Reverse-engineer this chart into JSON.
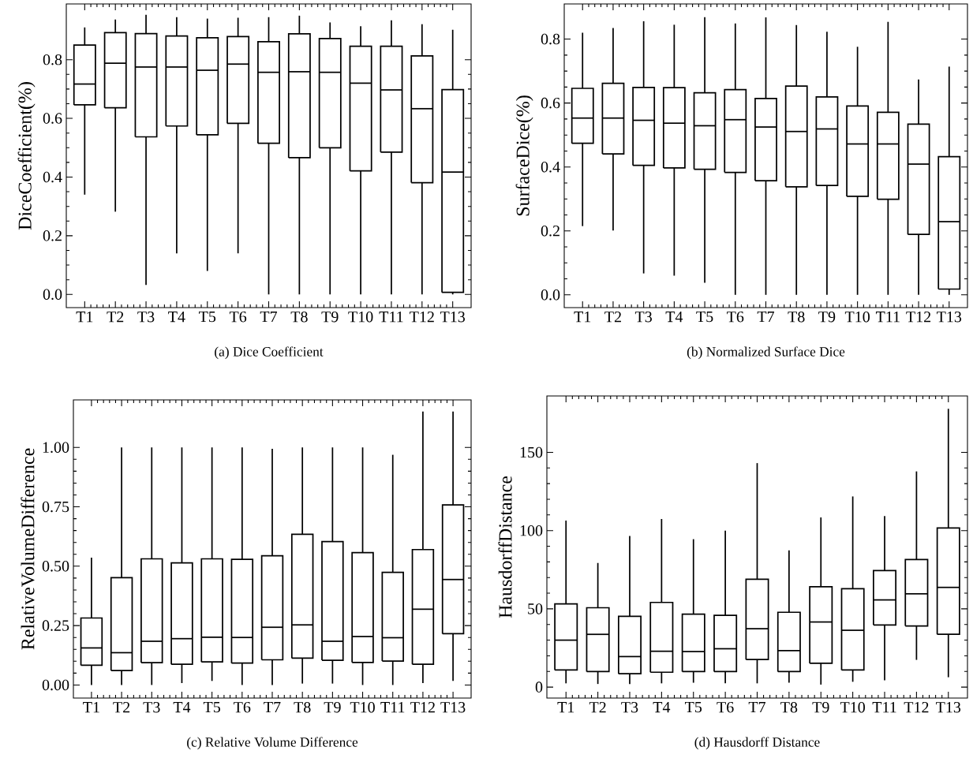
{
  "chart_data": [
    {
      "type": "box",
      "title": "(a) Dice Coefficient",
      "ylabel": "DiceCoefficient(%)",
      "categories": [
        "T1",
        "T2",
        "T3",
        "T4",
        "T5",
        "T6",
        "T7",
        "T8",
        "T9",
        "T10",
        "T11",
        "T12",
        "T13"
      ],
      "ylim": [
        -0.045,
        0.99
      ],
      "yticks": [
        {
          "value": 0,
          "label": "0.0"
        },
        {
          "value": 0.2,
          "label": "0.2"
        },
        {
          "value": 0.4,
          "label": "0.4"
        },
        {
          "value": 0.6,
          "label": "0.6"
        },
        {
          "value": 0.8,
          "label": "0.8"
        }
      ],
      "boxes": [
        {
          "low": 0.34,
          "q1": 0.646,
          "median": 0.717,
          "q3": 0.85,
          "high": 0.91
        },
        {
          "low": 0.282,
          "q1": 0.636,
          "median": 0.788,
          "q3": 0.892,
          "high": 0.937
        },
        {
          "low": 0.032,
          "q1": 0.537,
          "median": 0.775,
          "q3": 0.889,
          "high": 0.953
        },
        {
          "low": 0.14,
          "q1": 0.574,
          "median": 0.775,
          "q3": 0.881,
          "high": 0.945
        },
        {
          "low": 0.08,
          "q1": 0.544,
          "median": 0.764,
          "q3": 0.875,
          "high": 0.94
        },
        {
          "low": 0.14,
          "q1": 0.583,
          "median": 0.785,
          "q3": 0.879,
          "high": 0.943
        },
        {
          "low": 0,
          "q1": 0.515,
          "median": 0.757,
          "q3": 0.861,
          "high": 0.945
        },
        {
          "low": 0,
          "q1": 0.466,
          "median": 0.759,
          "q3": 0.888,
          "high": 0.95
        },
        {
          "low": 0,
          "q1": 0.5,
          "median": 0.757,
          "q3": 0.872,
          "high": 0.927
        },
        {
          "low": 0,
          "q1": 0.421,
          "median": 0.72,
          "q3": 0.846,
          "high": 0.914
        },
        {
          "low": 0,
          "q1": 0.485,
          "median": 0.697,
          "q3": 0.846,
          "high": 0.934
        },
        {
          "low": 0,
          "q1": 0.381,
          "median": 0.633,
          "q3": 0.813,
          "high": 0.921
        },
        {
          "low": 0,
          "q1": 0.007,
          "median": 0.417,
          "q3": 0.698,
          "high": 0.902
        }
      ]
    },
    {
      "type": "box",
      "title": "(b) Normalized Surface Dice",
      "ylabel": "SurfaceDice(%)",
      "categories": [
        "T1",
        "T2",
        "T3",
        "T4",
        "T5",
        "T6",
        "T7",
        "T8",
        "T9",
        "T10",
        "T11",
        "T12",
        "T13"
      ],
      "ylim": [
        -0.04,
        0.91
      ],
      "yticks": [
        {
          "value": 0,
          "label": "0.0"
        },
        {
          "value": 0.2,
          "label": "0.2"
        },
        {
          "value": 0.4,
          "label": "0.4"
        },
        {
          "value": 0.6,
          "label": "0.6"
        },
        {
          "value": 0.8,
          "label": "0.8"
        }
      ],
      "boxes": [
        {
          "low": 0.215,
          "q1": 0.474,
          "median": 0.553,
          "q3": 0.646,
          "high": 0.82
        },
        {
          "low": 0.201,
          "q1": 0.441,
          "median": 0.553,
          "q3": 0.662,
          "high": 0.835
        },
        {
          "low": 0.067,
          "q1": 0.405,
          "median": 0.546,
          "q3": 0.649,
          "high": 0.856
        },
        {
          "low": 0.06,
          "q1": 0.397,
          "median": 0.537,
          "q3": 0.648,
          "high": 0.845
        },
        {
          "low": 0.038,
          "q1": 0.393,
          "median": 0.529,
          "q3": 0.632,
          "high": 0.869
        },
        {
          "low": 0,
          "q1": 0.383,
          "median": 0.548,
          "q3": 0.642,
          "high": 0.849
        },
        {
          "low": 0,
          "q1": 0.357,
          "median": 0.525,
          "q3": 0.614,
          "high": 0.868
        },
        {
          "low": 0,
          "q1": 0.338,
          "median": 0.511,
          "q3": 0.653,
          "high": 0.844
        },
        {
          "low": 0,
          "q1": 0.342,
          "median": 0.519,
          "q3": 0.619,
          "high": 0.823
        },
        {
          "low": 0,
          "q1": 0.308,
          "median": 0.472,
          "q3": 0.591,
          "high": 0.776
        },
        {
          "low": 0,
          "q1": 0.299,
          "median": 0.472,
          "q3": 0.571,
          "high": 0.854
        },
        {
          "low": 0,
          "q1": 0.189,
          "median": 0.409,
          "q3": 0.534,
          "high": 0.674
        },
        {
          "low": 0,
          "q1": 0.018,
          "median": 0.229,
          "q3": 0.432,
          "high": 0.714
        }
      ]
    },
    {
      "type": "box",
      "title": "(c) Relative Volume Difference",
      "ylabel": "RelativeVolumeDifference",
      "categories": [
        "T1",
        "T2",
        "T3",
        "T4",
        "T5",
        "T6",
        "T7",
        "T8",
        "T9",
        "T10",
        "T11",
        "T12",
        "T13"
      ],
      "ylim": [
        -0.055,
        1.2
      ],
      "yticks": [
        {
          "value": 0,
          "label": "0.00"
        },
        {
          "value": 0.25,
          "label": "0.25"
        },
        {
          "value": 0.5,
          "label": "0.50"
        },
        {
          "value": 0.75,
          "label": "0.75"
        },
        {
          "value": 1,
          "label": "1.00"
        }
      ],
      "boxes": [
        {
          "low": 0,
          "q1": 0.083,
          "median": 0.156,
          "q3": 0.282,
          "high": 0.536
        },
        {
          "low": 0,
          "q1": 0.061,
          "median": 0.136,
          "q3": 0.452,
          "high": 1.0
        },
        {
          "low": 0,
          "q1": 0.094,
          "median": 0.184,
          "q3": 0.531,
          "high": 1.0
        },
        {
          "low": 0.008,
          "q1": 0.087,
          "median": 0.195,
          "q3": 0.514,
          "high": 1.0
        },
        {
          "low": 0.017,
          "q1": 0.097,
          "median": 0.201,
          "q3": 0.531,
          "high": 1.0
        },
        {
          "low": 0,
          "q1": 0.092,
          "median": 0.2,
          "q3": 0.529,
          "high": 1.0
        },
        {
          "low": 0,
          "q1": 0.106,
          "median": 0.243,
          "q3": 0.544,
          "high": 0.994
        },
        {
          "low": 0.006,
          "q1": 0.113,
          "median": 0.253,
          "q3": 0.634,
          "high": 1.0
        },
        {
          "low": 0.006,
          "q1": 0.104,
          "median": 0.184,
          "q3": 0.604,
          "high": 1.0
        },
        {
          "low": 0,
          "q1": 0.095,
          "median": 0.204,
          "q3": 0.557,
          "high": 1.0
        },
        {
          "low": 0,
          "q1": 0.101,
          "median": 0.199,
          "q3": 0.474,
          "high": 0.969
        },
        {
          "low": 0.008,
          "q1": 0.087,
          "median": 0.319,
          "q3": 0.57,
          "high": 1.151
        },
        {
          "low": 0.017,
          "q1": 0.216,
          "median": 0.444,
          "q3": 0.758,
          "high": 1.151
        }
      ]
    },
    {
      "type": "box",
      "title": "(d) Hausdorff Distance",
      "ylabel": "HausdorffDistance",
      "categories": [
        "T1",
        "T2",
        "T3",
        "T4",
        "T5",
        "T6",
        "T7",
        "T8",
        "T9",
        "T10",
        "T11",
        "T12",
        "T13"
      ],
      "ylim": [
        -7,
        186
      ],
      "yticks": [
        0,
        50,
        100,
        150
      ],
      "boxes": [
        {
          "low": 2.4,
          "q1": 10.9,
          "median": 30,
          "q3": 53.1,
          "high": 106.4
        },
        {
          "low": 2,
          "q1": 9.9,
          "median": 33.7,
          "q3": 50.7,
          "high": 79.3
        },
        {
          "low": 2,
          "q1": 8.5,
          "median": 19.5,
          "q3": 45.2,
          "high": 96.5
        },
        {
          "low": 2.4,
          "q1": 9.5,
          "median": 22.9,
          "q3": 54.1,
          "high": 107.4
        },
        {
          "low": 2.8,
          "q1": 9.9,
          "median": 22.7,
          "q3": 46.6,
          "high": 94.5
        },
        {
          "low": 2.4,
          "q1": 9.9,
          "median": 24.5,
          "q3": 45.8,
          "high": 100
        },
        {
          "low": 2.4,
          "q1": 17.6,
          "median": 37.3,
          "q3": 68.9,
          "high": 143.1
        },
        {
          "low": 2.8,
          "q1": 9.9,
          "median": 23.3,
          "q3": 47.8,
          "high": 87.4
        },
        {
          "low": 1.6,
          "q1": 15.2,
          "median": 41.6,
          "q3": 64.1,
          "high": 108.4
        },
        {
          "low": 3.4,
          "q1": 10.9,
          "median": 36.3,
          "q3": 62.8,
          "high": 121.8
        },
        {
          "low": 4.3,
          "q1": 39.7,
          "median": 55.7,
          "q3": 74.4,
          "high": 109.3
        },
        {
          "low": 17.4,
          "q1": 39.1,
          "median": 59.6,
          "q3": 81.5,
          "high": 137.8
        },
        {
          "low": 6.3,
          "q1": 33.7,
          "median": 63.7,
          "q3": 101.6,
          "high": 177.8
        }
      ]
    }
  ]
}
